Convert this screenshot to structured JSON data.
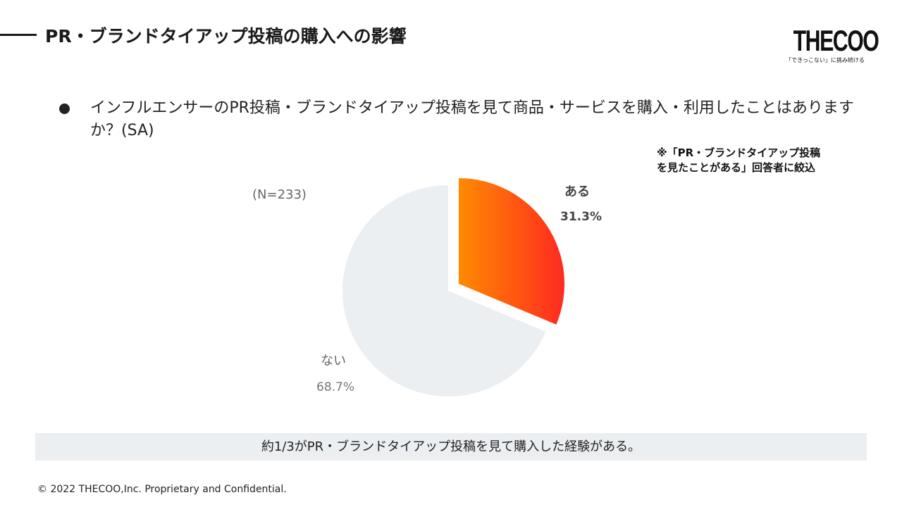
{
  "title": "PR・ブランドタイアップ投稿の購入への影響",
  "logo": {
    "wordmark": "THECOO",
    "tagline": "「できっこない」に挑み続ける"
  },
  "question": "インフルエンサーのPR投稿・ブランドタイアップ投稿を見て商品・サービスを購入・利用したことはありますか？(SA)",
  "note_line1": "※「PR・ブランドタイアップ投稿",
  "note_line2": "を見たことがある」回答者に絞込",
  "sample_size": "(N=233)",
  "conclusion": "約1/3がPR・ブランドタイアップ投稿を見て購入した経験がある。",
  "footer": "© 2022 THECOO,Inc. Proprietary and Confidential.",
  "chart_data": {
    "type": "pie",
    "slices": [
      {
        "label": "ある",
        "value": 31.3,
        "value_label": "31.3%",
        "color": "#ff4a1c",
        "gradient": [
          "#ff8a00",
          "#ff2a20"
        ],
        "exploded": true
      },
      {
        "label": "ない",
        "value": 68.7,
        "value_label": "68.7%",
        "color": "#ebeff2",
        "exploded": false
      }
    ]
  }
}
